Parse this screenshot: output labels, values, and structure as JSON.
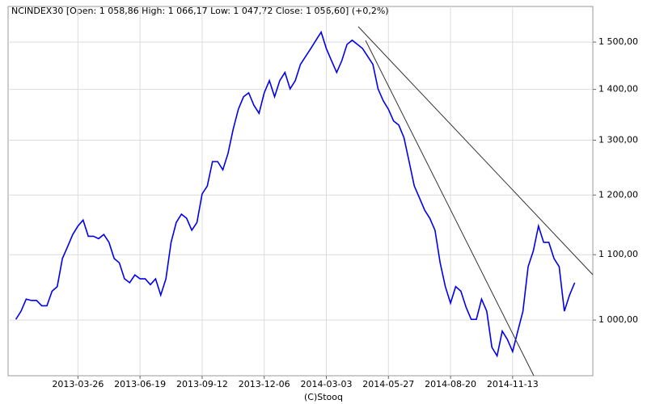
{
  "chart_data": {
    "type": "line",
    "title": "NCINDEX30 [Open: 1 058,86  High: 1 066,17  Low: 1 047,72  Close: 1 056,60] (+0,2%)",
    "footer": "(C)Stooq",
    "color": "#0000ee",
    "log_scale": true,
    "grid": true,
    "ylim": [
      922,
      1580
    ],
    "yticks": [
      {
        "value": 1000,
        "label": "1 000,00"
      },
      {
        "value": 1100,
        "label": "1 100,00"
      },
      {
        "value": 1200,
        "label": "1 200,00"
      },
      {
        "value": 1300,
        "label": "1 300,00"
      },
      {
        "value": 1400,
        "label": "1 400,00"
      },
      {
        "value": 1500,
        "label": "1 500,00"
      }
    ],
    "categories": [
      null,
      null,
      null,
      null,
      null,
      null,
      null,
      null,
      null,
      null,
      null,
      null,
      null,
      "2013-03-26",
      null,
      null,
      null,
      null,
      null,
      null,
      null,
      null,
      null,
      null,
      null,
      "2013-06-19",
      null,
      null,
      null,
      null,
      null,
      null,
      null,
      null,
      null,
      null,
      null,
      "2013-09-12",
      null,
      null,
      null,
      null,
      null,
      null,
      null,
      null,
      null,
      null,
      null,
      "2013-12-06",
      null,
      null,
      null,
      null,
      null,
      null,
      null,
      null,
      null,
      null,
      null,
      "2014-03-03",
      null,
      null,
      null,
      null,
      null,
      null,
      null,
      null,
      null,
      null,
      null,
      "2014-05-27",
      null,
      null,
      null,
      null,
      null,
      null,
      null,
      null,
      null,
      null,
      null,
      "2014-08-20",
      null,
      null,
      null,
      null,
      null,
      null,
      null,
      null,
      null,
      null,
      null,
      "2014-11-13",
      null,
      null,
      null,
      null,
      null,
      null,
      null,
      null,
      null,
      null,
      null,
      null,
      null,
      null,
      null
    ],
    "values": [
      null,
      1001,
      1013,
      1031,
      1029,
      1029,
      1021,
      1021,
      1043,
      1050,
      1094,
      1113,
      1133,
      1147,
      1157,
      1130,
      1130,
      1126,
      1133,
      1120,
      1094,
      1087,
      1062,
      1056,
      1068,
      1062,
      1062,
      1053,
      1062,
      1037,
      1062,
      1120,
      1153,
      1167,
      1160,
      1140,
      1153,
      1202,
      1216,
      1260,
      1260,
      1245,
      1275,
      1321,
      1360,
      1385,
      1393,
      1368,
      1352,
      1393,
      1418,
      1385,
      1418,
      1435,
      1401,
      1418,
      1452,
      1469,
      1486,
      1504,
      1522,
      1486,
      1460,
      1435,
      1460,
      1495,
      1504,
      1495,
      1486,
      1469,
      1452,
      1401,
      1377,
      1360,
      1337,
      1329,
      1305,
      1260,
      1216,
      1195,
      1174,
      1160,
      1140,
      1087,
      1050,
      1025,
      1050,
      1043,
      1019,
      1001,
      1001,
      1031,
      1013,
      961,
      949,
      984,
      972,
      955,
      984,
      1013,
      1081,
      1106,
      1147,
      1120,
      1120,
      1094,
      1081,
      1013,
      1037,
      1056,
      null,
      null,
      null
    ]
  }
}
